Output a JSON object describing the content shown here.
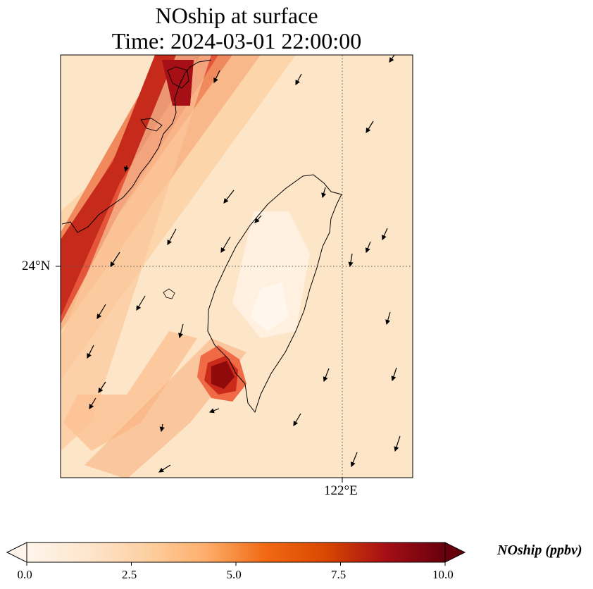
{
  "title_line1": "NOship at surface",
  "title_line2": "Time: 2024-03-01 22:00:00",
  "lat_tick": "24°N",
  "lon_tick": "122°E",
  "colorbar": {
    "label": "NOship (ppbv)",
    "ticks": [
      "0.0",
      "2.5",
      "5.0",
      "7.5",
      "10.0"
    ],
    "stops": [
      "#fff5eb",
      "#fee6ce",
      "#fdd0a2",
      "#fdae6b",
      "#f16913",
      "#d94801",
      "#a50f15",
      "#67000d"
    ],
    "colormap": "OrRd",
    "range": [
      0,
      10
    ],
    "extend": "both"
  },
  "map": {
    "projection": "PlateCarree",
    "gridlines": "dotted",
    "features": [
      "coastline",
      "wind-vectors",
      "NOship-field"
    ]
  }
}
